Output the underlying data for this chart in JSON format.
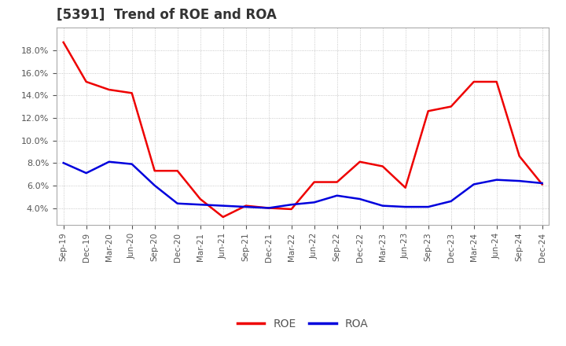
{
  "title": "[5391]  Trend of ROE and ROA",
  "x_labels": [
    "Sep-19",
    "Dec-19",
    "Mar-20",
    "Jun-20",
    "Sep-20",
    "Dec-20",
    "Mar-21",
    "Jun-21",
    "Sep-21",
    "Dec-21",
    "Mar-22",
    "Jun-22",
    "Sep-22",
    "Dec-22",
    "Mar-23",
    "Jun-23",
    "Sep-23",
    "Dec-23",
    "Mar-24",
    "Jun-24",
    "Sep-24",
    "Dec-24"
  ],
  "roe": [
    18.7,
    15.2,
    14.5,
    14.2,
    7.3,
    7.3,
    4.8,
    3.2,
    4.2,
    4.0,
    3.9,
    6.3,
    6.3,
    8.1,
    7.7,
    5.8,
    12.6,
    13.0,
    15.2,
    15.2,
    8.6,
    6.1
  ],
  "roa": [
    8.0,
    7.1,
    8.1,
    7.9,
    6.0,
    4.4,
    4.3,
    4.2,
    4.1,
    4.0,
    4.3,
    4.5,
    5.1,
    4.8,
    4.2,
    4.1,
    4.1,
    4.6,
    6.1,
    6.5,
    6.4,
    6.2
  ],
  "roe_color": "#EE0000",
  "roa_color": "#0000DD",
  "ylim_min": 2.5,
  "ylim_max": 20.0,
  "yticks": [
    4.0,
    6.0,
    8.0,
    10.0,
    12.0,
    14.0,
    16.0,
    18.0
  ],
  "background_color": "#FFFFFF",
  "plot_bg_color": "#FFFFFF",
  "grid_color": "#BBBBBB",
  "title_fontsize": 12,
  "title_color": "#333333",
  "legend_labels": [
    "ROE",
    "ROA"
  ],
  "tick_color": "#555555"
}
